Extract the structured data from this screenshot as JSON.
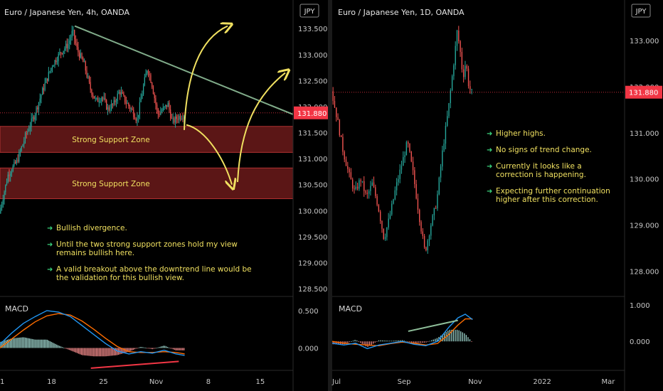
{
  "colors": {
    "up": "#26a69a",
    "down": "#ef5350",
    "background": "#000000",
    "price_tag": "#f23645",
    "support_zone": "#6b1a1a",
    "annotation": "#f0e060",
    "arrow": "#f0e060",
    "trendline": "#8fbf9a",
    "macd_line": "#2196f3",
    "signal_line": "#ff6d00"
  },
  "chart_data": [
    {
      "type": "candlestick",
      "title": "Euro / Japanese Yen, 4h, OANDA",
      "currency_badge": "JPY",
      "last_price": "131.880",
      "y_ticks": [
        "133.500",
        "133.000",
        "132.500",
        "132.000",
        "131.500",
        "131.000",
        "130.500",
        "130.000",
        "129.500",
        "129.000",
        "128.500"
      ],
      "ylim": [
        128.35,
        134.05
      ],
      "x_ticks": [
        {
          "label": "1",
          "pos": 0.0
        },
        {
          "label": "18",
          "pos": 0.176
        },
        {
          "label": "25",
          "pos": 0.353
        },
        {
          "label": "Nov",
          "pos": 0.533
        },
        {
          "label": "8",
          "pos": 0.711
        },
        {
          "label": "15",
          "pos": 0.888
        }
      ],
      "support_zones": [
        {
          "label": "Strong Support Zone",
          "low": 131.12,
          "high": 131.62
        },
        {
          "label": "Strong Support Zone",
          "low": 130.23,
          "high": 130.82
        }
      ],
      "trendline": {
        "from": {
          "t": 0.255,
          "price": 133.55
        },
        "to": {
          "t": 1.0,
          "price": 131.85
        }
      },
      "price_path": [
        [
          0.0,
          129.95
        ],
        [
          0.03,
          130.7
        ],
        [
          0.06,
          130.95
        ],
        [
          0.09,
          131.45
        ],
        [
          0.12,
          131.85
        ],
        [
          0.15,
          132.35
        ],
        [
          0.18,
          132.8
        ],
        [
          0.21,
          133.05
        ],
        [
          0.235,
          133.2
        ],
        [
          0.25,
          133.45
        ],
        [
          0.265,
          133.1
        ],
        [
          0.29,
          132.8
        ],
        [
          0.31,
          132.35
        ],
        [
          0.33,
          132.1
        ],
        [
          0.35,
          132.2
        ],
        [
          0.37,
          131.95
        ],
        [
          0.39,
          132.05
        ],
        [
          0.41,
          132.3
        ],
        [
          0.43,
          132.1
        ],
        [
          0.45,
          131.95
        ],
        [
          0.47,
          131.75
        ],
        [
          0.49,
          132.35
        ],
        [
          0.505,
          132.75
        ],
        [
          0.52,
          132.45
        ],
        [
          0.54,
          131.85
        ],
        [
          0.56,
          131.95
        ],
        [
          0.575,
          132.05
        ],
        [
          0.59,
          131.7
        ],
        [
          0.61,
          131.8
        ],
        [
          0.63,
          131.85
        ]
      ],
      "candle_count": 150,
      "annotations": [
        "Bullish divergence.",
        "Until the two strong support zones hold my view remains bullish here.",
        "A valid breakout above the downtrend line would be the validation for this bullish view."
      ],
      "macd": {
        "label": "MACD",
        "y_ticks": [
          "0.500",
          "0.000"
        ],
        "ylim": [
          -0.3,
          0.68
        ],
        "macd_path": [
          [
            0.0,
            0.05
          ],
          [
            0.04,
            0.2
          ],
          [
            0.08,
            0.33
          ],
          [
            0.12,
            0.42
          ],
          [
            0.16,
            0.5
          ],
          [
            0.2,
            0.48
          ],
          [
            0.24,
            0.42
          ],
          [
            0.28,
            0.3
          ],
          [
            0.32,
            0.18
          ],
          [
            0.36,
            0.06
          ],
          [
            0.4,
            -0.04
          ],
          [
            0.44,
            -0.08
          ],
          [
            0.48,
            -0.05
          ],
          [
            0.52,
            -0.07
          ],
          [
            0.56,
            -0.03
          ],
          [
            0.6,
            -0.08
          ],
          [
            0.63,
            -0.1
          ]
        ],
        "signal_path": [
          [
            0.0,
            0.0
          ],
          [
            0.04,
            0.12
          ],
          [
            0.08,
            0.24
          ],
          [
            0.12,
            0.35
          ],
          [
            0.16,
            0.43
          ],
          [
            0.2,
            0.46
          ],
          [
            0.24,
            0.44
          ],
          [
            0.28,
            0.36
          ],
          [
            0.32,
            0.25
          ],
          [
            0.36,
            0.13
          ],
          [
            0.4,
            0.02
          ],
          [
            0.44,
            -0.05
          ],
          [
            0.48,
            -0.06
          ],
          [
            0.52,
            -0.06
          ],
          [
            0.56,
            -0.05
          ],
          [
            0.6,
            -0.06
          ],
          [
            0.63,
            -0.08
          ]
        ],
        "divergence_line": {
          "from": {
            "t": 0.31,
            "v": -0.27
          },
          "to": {
            "t": 0.61,
            "v": -0.18
          }
        }
      }
    },
    {
      "type": "candlestick",
      "title": "Euro / Japanese Yen, 1D, OANDA",
      "currency_badge": "JPY",
      "last_price": "131.880",
      "y_ticks": [
        "133.000",
        "132.000",
        "131.000",
        "130.000",
        "129.000",
        "128.000"
      ],
      "ylim": [
        127.45,
        133.88
      ],
      "x_ticks": [
        {
          "label": "Jul",
          "pos": 0.0
        },
        {
          "label": "Sep",
          "pos": 0.246
        },
        {
          "label": "Nov",
          "pos": 0.489
        },
        {
          "label": "2022",
          "pos": 0.718
        },
        {
          "label": "Mar",
          "pos": 0.944
        }
      ],
      "price_path": [
        [
          0.0,
          131.9
        ],
        [
          0.02,
          131.3
        ],
        [
          0.04,
          130.6
        ],
        [
          0.06,
          130.1
        ],
        [
          0.08,
          129.7
        ],
        [
          0.1,
          130.0
        ],
        [
          0.12,
          129.6
        ],
        [
          0.14,
          129.9
        ],
        [
          0.16,
          129.4
        ],
        [
          0.18,
          128.7
        ],
        [
          0.2,
          129.2
        ],
        [
          0.22,
          129.8
        ],
        [
          0.24,
          130.3
        ],
        [
          0.26,
          130.8
        ],
        [
          0.28,
          130.1
        ],
        [
          0.3,
          129.2
        ],
        [
          0.32,
          128.4
        ],
        [
          0.34,
          129.0
        ],
        [
          0.36,
          129.5
        ],
        [
          0.38,
          130.6
        ],
        [
          0.4,
          131.5
        ],
        [
          0.42,
          132.6
        ],
        [
          0.43,
          133.2
        ],
        [
          0.44,
          132.8
        ],
        [
          0.45,
          132.2
        ],
        [
          0.46,
          132.55
        ],
        [
          0.47,
          132.0
        ],
        [
          0.48,
          131.88
        ]
      ],
      "candle_count": 86,
      "annotations": [
        "Higher highs.",
        "No signs of trend change.",
        "Currently it looks like a correction is happening.",
        "Expecting further continuation higher after this correction."
      ],
      "macd": {
        "label": "MACD",
        "y_ticks": [
          "1.000",
          "0.000"
        ],
        "ylim": [
          -0.8,
          1.22
        ],
        "macd_path": [
          [
            0.0,
            -0.05
          ],
          [
            0.04,
            -0.1
          ],
          [
            0.08,
            -0.05
          ],
          [
            0.12,
            -0.2
          ],
          [
            0.16,
            -0.1
          ],
          [
            0.2,
            -0.05
          ],
          [
            0.24,
            0.0
          ],
          [
            0.28,
            -0.08
          ],
          [
            0.32,
            -0.12
          ],
          [
            0.36,
            0.0
          ],
          [
            0.4,
            0.4
          ],
          [
            0.43,
            0.65
          ],
          [
            0.455,
            0.75
          ],
          [
            0.48,
            0.6
          ]
        ],
        "signal_path": [
          [
            0.0,
            0.0
          ],
          [
            0.04,
            -0.05
          ],
          [
            0.08,
            -0.08
          ],
          [
            0.12,
            -0.1
          ],
          [
            0.16,
            -0.12
          ],
          [
            0.2,
            -0.06
          ],
          [
            0.24,
            -0.02
          ],
          [
            0.28,
            -0.05
          ],
          [
            0.32,
            -0.1
          ],
          [
            0.36,
            -0.06
          ],
          [
            0.4,
            0.2
          ],
          [
            0.43,
            0.45
          ],
          [
            0.455,
            0.62
          ],
          [
            0.48,
            0.62
          ]
        ],
        "divergence_line": {
          "from": {
            "t": 0.26,
            "v": 0.28
          },
          "to": {
            "t": 0.43,
            "v": 0.58
          }
        }
      }
    }
  ]
}
